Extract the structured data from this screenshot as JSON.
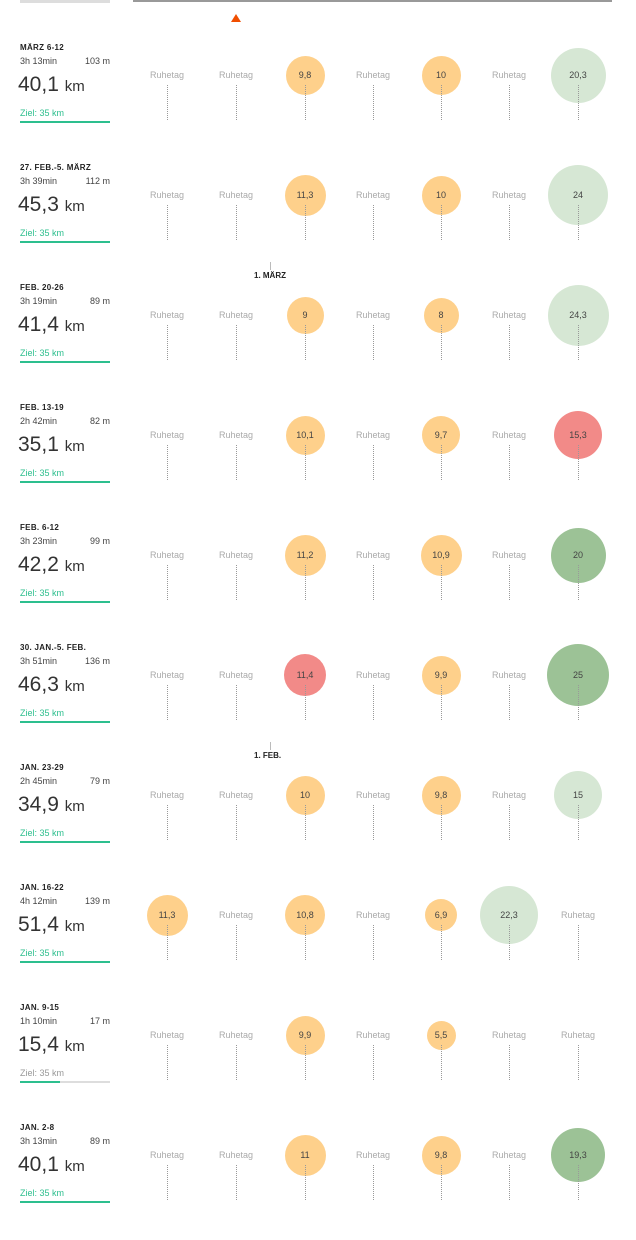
{
  "colors": {
    "run": "#fed08b",
    "long_light": "#d6e7d4",
    "long_dark": "#9cc296",
    "over": "#f28a88",
    "goal": "#2dbf8e"
  },
  "unit": "km",
  "rest_label": "Ruhetag",
  "month_markers": [
    {
      "label": "1. MÄRZ",
      "after_week": 1
    },
    {
      "label": "1. FEB.",
      "after_week": 5
    }
  ],
  "weeks": [
    {
      "title": "MÄRZ 6-12",
      "duration": "3h 13min",
      "elevation": "103 m",
      "distance": "40,1",
      "goal": "Ziel: 35 km",
      "progress": 1,
      "days": [
        null,
        null,
        {
          "v": "9,8",
          "c": "run"
        },
        null,
        {
          "v": "10",
          "c": "run"
        },
        null,
        {
          "v": "20,3",
          "c": "long_light"
        }
      ]
    },
    {
      "title": "27. FEB.-5. MÄRZ",
      "duration": "3h 39min",
      "elevation": "112 m",
      "distance": "45,3",
      "goal": "Ziel: 35 km",
      "progress": 1,
      "days": [
        null,
        null,
        {
          "v": "11,3",
          "c": "run"
        },
        null,
        {
          "v": "10",
          "c": "run"
        },
        null,
        {
          "v": "24",
          "c": "long_light"
        }
      ]
    },
    {
      "title": "FEB. 20-26",
      "duration": "3h 19min",
      "elevation": "89 m",
      "distance": "41,4",
      "goal": "Ziel: 35 km",
      "progress": 1,
      "days": [
        null,
        null,
        {
          "v": "9",
          "c": "run"
        },
        null,
        {
          "v": "8",
          "c": "run"
        },
        null,
        {
          "v": "24,3",
          "c": "long_light"
        }
      ]
    },
    {
      "title": "FEB. 13-19",
      "duration": "2h 42min",
      "elevation": "82 m",
      "distance": "35,1",
      "goal": "Ziel: 35 km",
      "progress": 1,
      "days": [
        null,
        null,
        {
          "v": "10,1",
          "c": "run"
        },
        null,
        {
          "v": "9,7",
          "c": "run"
        },
        null,
        {
          "v": "15,3",
          "c": "over"
        }
      ]
    },
    {
      "title": "FEB. 6-12",
      "duration": "3h 23min",
      "elevation": "99 m",
      "distance": "42,2",
      "goal": "Ziel: 35 km",
      "progress": 1,
      "days": [
        null,
        null,
        {
          "v": "11,2",
          "c": "run"
        },
        null,
        {
          "v": "10,9",
          "c": "run"
        },
        null,
        {
          "v": "20",
          "c": "long_dark"
        }
      ]
    },
    {
      "title": "30. JAN.-5. FEB.",
      "duration": "3h 51min",
      "elevation": "136 m",
      "distance": "46,3",
      "goal": "Ziel: 35 km",
      "progress": 1,
      "days": [
        null,
        null,
        {
          "v": "11,4",
          "c": "over"
        },
        null,
        {
          "v": "9,9",
          "c": "run"
        },
        null,
        {
          "v": "25",
          "c": "long_dark"
        }
      ]
    },
    {
      "title": "JAN. 23-29",
      "duration": "2h 45min",
      "elevation": "79 m",
      "distance": "34,9",
      "goal": "Ziel: 35 km",
      "progress": 1,
      "days": [
        null,
        null,
        {
          "v": "10",
          "c": "run"
        },
        null,
        {
          "v": "9,8",
          "c": "run"
        },
        null,
        {
          "v": "15",
          "c": "long_light"
        }
      ]
    },
    {
      "title": "JAN. 16-22",
      "duration": "4h 12min",
      "elevation": "139 m",
      "distance": "51,4",
      "goal": "Ziel: 35 km",
      "progress": 1,
      "days": [
        {
          "v": "11,3",
          "c": "run"
        },
        null,
        {
          "v": "10,8",
          "c": "run"
        },
        null,
        {
          "v": "6,9",
          "c": "run"
        },
        {
          "v": "22,3",
          "c": "long_light"
        },
        null
      ]
    },
    {
      "title": "JAN. 9-15",
      "duration": "1h 10min",
      "elevation": "17 m",
      "distance": "15,4",
      "goal": "Ziel: 35 km",
      "progress": 0.44,
      "days": [
        null,
        null,
        {
          "v": "9,9",
          "c": "run"
        },
        null,
        {
          "v": "5,5",
          "c": "run"
        },
        null,
        null
      ]
    },
    {
      "title": "JAN. 2-8",
      "duration": "3h 13min",
      "elevation": "89 m",
      "distance": "40,1",
      "goal": "Ziel: 35 km",
      "progress": 1,
      "days": [
        null,
        null,
        {
          "v": "11",
          "c": "run"
        },
        null,
        {
          "v": "9,8",
          "c": "run"
        },
        null,
        {
          "v": "19,3",
          "c": "long_dark"
        }
      ]
    }
  ]
}
